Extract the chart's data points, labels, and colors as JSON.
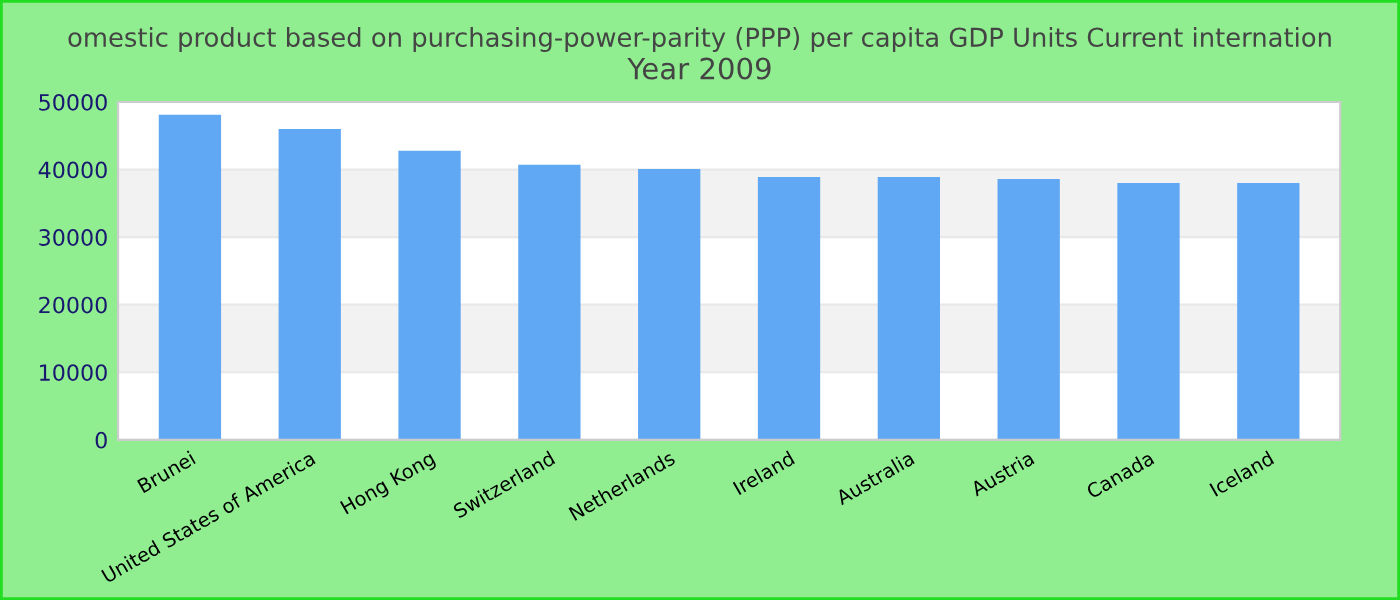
{
  "chart_data": {
    "type": "bar",
    "title": "omestic product based on purchasing-power-parity (PPP) per capita GDP Units Current internation",
    "subtitle": "Year 2009",
    "categories": [
      "Brunei",
      "United States of America",
      "Hong Kong",
      "Switzerland",
      "Netherlands",
      "Ireland",
      "Australia",
      "Austria",
      "Canada",
      "Iceland"
    ],
    "values": [
      48100,
      46000,
      42800,
      40700,
      40100,
      38900,
      38900,
      38600,
      38000,
      38000
    ],
    "color": "#60a8f4",
    "ylim": [
      0,
      50000
    ],
    "yticks": [
      0,
      10000,
      20000,
      30000,
      40000,
      50000
    ],
    "grid": "y"
  }
}
